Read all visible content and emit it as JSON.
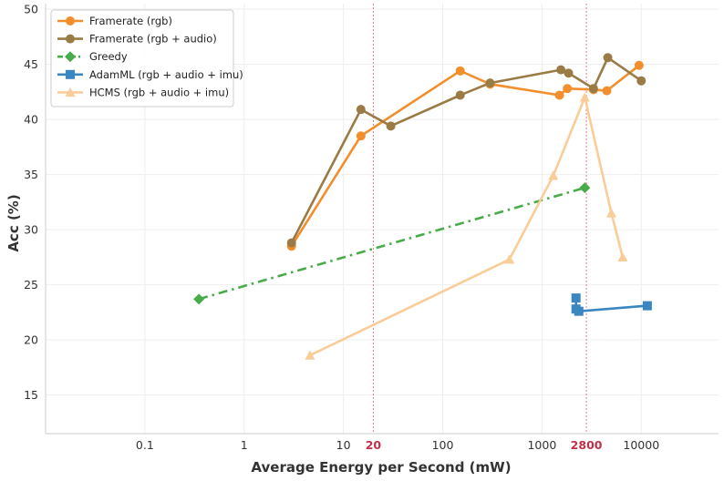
{
  "chart_data": {
    "type": "line",
    "title": "",
    "xlabel": "Average Energy per Second (mW)",
    "ylabel": "Acc (%)",
    "x_scale": "log",
    "xlim": [
      0.01,
      60000
    ],
    "ylim": [
      11.5,
      50.5
    ],
    "x_ticks": [
      {
        "value": 0.1,
        "label": "0.1"
      },
      {
        "value": 1,
        "label": "1"
      },
      {
        "value": 10,
        "label": "10"
      },
      {
        "value": 100,
        "label": "100"
      },
      {
        "value": 1000,
        "label": "1000"
      },
      {
        "value": 10000,
        "label": "10000"
      }
    ],
    "x_highlight_ticks": [
      {
        "value": 20,
        "label": "20"
      },
      {
        "value": 2800,
        "label": "2800"
      }
    ],
    "y_ticks": [
      15,
      20,
      25,
      30,
      35,
      40,
      45,
      50
    ],
    "grid": true,
    "legend_position": "top-left",
    "series": [
      {
        "name": "Framerate (rgb)",
        "color": "#f28e2b",
        "marker": "circle",
        "line_style": "solid",
        "points": [
          [
            3,
            28.5
          ],
          [
            15,
            38.5
          ],
          [
            150,
            44.4
          ],
          [
            300,
            43.2
          ],
          [
            1500,
            42.2
          ],
          [
            1800,
            42.8
          ],
          [
            3300,
            42.7
          ],
          [
            4500,
            42.6
          ],
          [
            9500,
            44.9
          ]
        ]
      },
      {
        "name": "Framerate (rgb + audio)",
        "color": "#9a7b45",
        "marker": "circle",
        "line_style": "solid",
        "points": [
          [
            3,
            28.8
          ],
          [
            15,
            40.9
          ],
          [
            30,
            39.4
          ],
          [
            150,
            42.2
          ],
          [
            300,
            43.3
          ],
          [
            1550,
            44.5
          ],
          [
            1850,
            44.2
          ],
          [
            3300,
            42.8
          ],
          [
            4600,
            45.6
          ],
          [
            10000,
            43.5
          ]
        ]
      },
      {
        "name": "Greedy",
        "color": "#4aab4a",
        "marker": "diamond",
        "line_style": "dashdot",
        "points": [
          [
            0.35,
            23.7
          ],
          [
            2700,
            33.8
          ]
        ]
      },
      {
        "name": "AdamML (rgb + audio + imu)",
        "color": "#3a86c0",
        "marker": "square",
        "line_style": "solid",
        "points": [
          [
            2200,
            23.8
          ],
          [
            2200,
            22.8
          ],
          [
            2350,
            22.6
          ],
          [
            11500,
            23.1
          ]
        ]
      },
      {
        "name": "HCMS (rgb + audio + imu)",
        "color": "#f9cc98",
        "marker": "triangle",
        "line_style": "solid",
        "points": [
          [
            4.6,
            18.6
          ],
          [
            470,
            27.3
          ],
          [
            1300,
            34.9
          ],
          [
            2700,
            42.0
          ],
          [
            5000,
            31.5
          ],
          [
            6500,
            27.5
          ]
        ]
      }
    ]
  }
}
